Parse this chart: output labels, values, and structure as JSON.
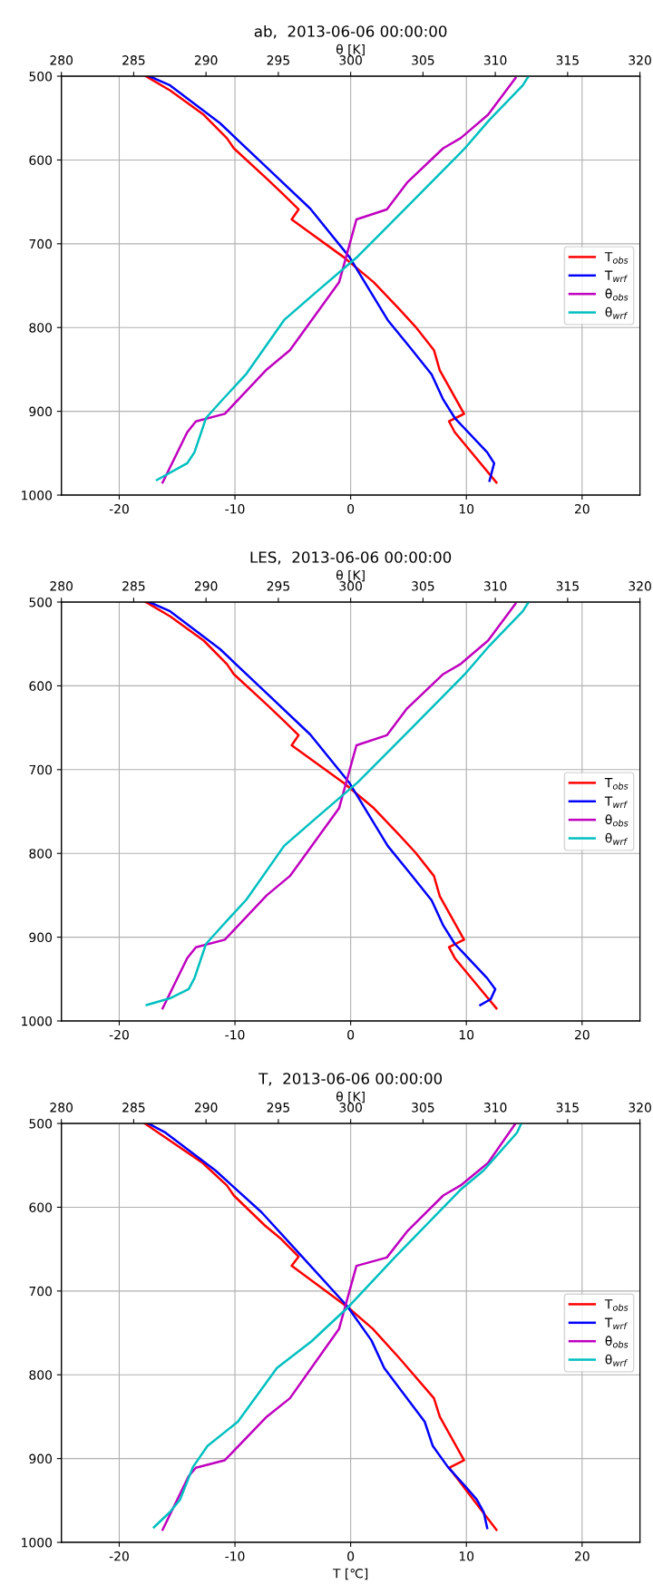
{
  "chart_data": [
    {
      "type": "line",
      "title": "ab,  2013-06-06 00:00:00",
      "x2label": "θ [K]",
      "xlim": [
        -25,
        25
      ],
      "xticks": [
        -20,
        -10,
        0,
        10,
        20
      ],
      "x2lim": [
        280,
        320
      ],
      "x2ticks": [
        280,
        285,
        290,
        295,
        300,
        305,
        310,
        315,
        320
      ],
      "ylim": [
        1000,
        500
      ],
      "yticks": [
        500,
        600,
        700,
        800,
        900,
        1000
      ],
      "grid": true,
      "legend": "center right",
      "line_style": "solid",
      "marker": "none",
      "series": [
        {
          "name": "T$_{obs}$",
          "color": "#ff0000",
          "x": [
            -17.7,
            -15.6,
            -12.7,
            -10.7,
            -10.1,
            -7.2,
            -5.9,
            -4.5,
            -5.1,
            -0.6,
            2.0,
            4.2,
            5.6,
            7.2,
            7.7,
            9.8,
            8.5,
            9.0,
            12.6
          ],
          "values": [
            500,
            517,
            546,
            574,
            586,
            623,
            640,
            659,
            671,
            716,
            746,
            778,
            799,
            827,
            851,
            903,
            912,
            925,
            985
          ]
        },
        {
          "name": "T$_{wrf}$",
          "color": "#0000ff",
          "x": [
            -17.4,
            -15.6,
            -11.3,
            -7.4,
            -3.5,
            -0.1,
            3.2,
            5.2,
            7.0,
            8.0,
            9.0,
            11.8,
            12.4,
            12.0
          ],
          "values": [
            500,
            511,
            556,
            607,
            658,
            716,
            791,
            825,
            856,
            886,
            908,
            949,
            962,
            983
          ]
        },
        {
          "name": "θ$_{obs}$",
          "color": "#bf00bf",
          "axis": "x2",
          "x": [
            311.4,
            309.5,
            307.6,
            306.4,
            303.9,
            302.5,
            300.4,
            299.2,
            295.8,
            294.2,
            291.3,
            289.3,
            288.7,
            287.0
          ],
          "values": [
            502,
            546,
            574,
            586,
            627,
            659,
            671,
            746,
            827,
            850,
            903,
            912,
            925,
            985
          ]
        },
        {
          "name": "θ$_{wrf}$",
          "color": "#00bfbf",
          "axis": "x2",
          "x": [
            312.3,
            311.9,
            309.6,
            307.9,
            303.9,
            300.5,
            297.6,
            295.4,
            292.8,
            291.2,
            290.0,
            289.2,
            288.7,
            286.6
          ],
          "values": [
            500,
            511,
            552,
            586,
            656,
            715,
            758,
            791,
            855,
            885,
            908,
            949,
            962,
            982
          ]
        }
      ]
    },
    {
      "type": "line",
      "title": "LES,  2013-06-06 00:00:00",
      "x2label": "θ [K]",
      "xlim": [
        -25,
        25
      ],
      "xticks": [
        -20,
        -10,
        0,
        10,
        20
      ],
      "x2lim": [
        280,
        320
      ],
      "x2ticks": [
        280,
        285,
        290,
        295,
        300,
        305,
        310,
        315,
        320
      ],
      "ylim": [
        1000,
        500
      ],
      "yticks": [
        500,
        600,
        700,
        800,
        900,
        1000
      ],
      "grid": true,
      "legend": "center right",
      "line_style": "solid",
      "marker": "none",
      "series": [
        {
          "name": "T$_{obs}$",
          "color": "#ff0000",
          "x": [
            -17.7,
            -15.6,
            -12.7,
            -10.7,
            -10.1,
            -7.2,
            -5.9,
            -4.5,
            -5.1,
            -0.6,
            2.0,
            4.2,
            5.6,
            7.2,
            7.7,
            9.8,
            8.5,
            9.0,
            12.6
          ],
          "values": [
            500,
            517,
            546,
            574,
            586,
            623,
            640,
            659,
            671,
            716,
            746,
            778,
            799,
            827,
            851,
            903,
            912,
            925,
            985
          ]
        },
        {
          "name": "T$_{wrf}$",
          "color": "#0000ff",
          "x": [
            -17.4,
            -15.6,
            -11.3,
            -7.4,
            -3.5,
            -0.1,
            3.2,
            5.2,
            7.0,
            8.0,
            9.0,
            11.8,
            12.5,
            12.1,
            11.2
          ],
          "values": [
            500,
            511,
            556,
            607,
            658,
            716,
            791,
            825,
            856,
            886,
            908,
            949,
            962,
            974,
            981
          ]
        },
        {
          "name": "θ$_{obs}$",
          "color": "#bf00bf",
          "axis": "x2",
          "x": [
            311.4,
            309.5,
            307.6,
            306.4,
            303.9,
            302.5,
            300.4,
            299.2,
            295.8,
            294.2,
            291.3,
            289.3,
            288.7,
            287.0
          ],
          "values": [
            502,
            546,
            574,
            586,
            627,
            659,
            671,
            746,
            827,
            850,
            903,
            912,
            925,
            985
          ]
        },
        {
          "name": "θ$_{wrf}$",
          "color": "#00bfbf",
          "axis": "x2",
          "x": [
            312.3,
            311.9,
            309.6,
            307.9,
            303.9,
            300.5,
            297.6,
            295.4,
            292.8,
            291.2,
            290.0,
            289.2,
            288.8,
            287.5,
            285.9
          ],
          "values": [
            500,
            511,
            552,
            586,
            656,
            715,
            758,
            791,
            855,
            885,
            908,
            949,
            962,
            973,
            981
          ]
        }
      ]
    },
    {
      "type": "line",
      "title": "T,  2013-06-06 00:00:00",
      "xlabel": "T [℃]",
      "x2label": "θ [K]",
      "xlim": [
        -25,
        25
      ],
      "xticks": [
        -20,
        -10,
        0,
        10,
        20
      ],
      "x2lim": [
        280,
        320
      ],
      "x2ticks": [
        280,
        285,
        290,
        295,
        300,
        305,
        310,
        315,
        320
      ],
      "ylim": [
        1000,
        500
      ],
      "yticks": [
        500,
        600,
        700,
        800,
        900,
        1000
      ],
      "grid": true,
      "legend": "center right",
      "line_style": "solid",
      "marker": "none",
      "series": [
        {
          "name": "T$_{obs}$",
          "color": "#ff0000",
          "x": [
            -17.8,
            -12.8,
            -10.7,
            -10.1,
            -7.4,
            -6.0,
            -4.5,
            -5.1,
            -0.2,
            1.9,
            4.2,
            7.2,
            7.7,
            9.8,
            8.5,
            12.6
          ],
          "values": [
            500,
            547,
            574,
            586,
            622,
            638,
            659,
            670,
            720,
            745,
            780,
            828,
            850,
            902,
            911,
            985
          ]
        },
        {
          "name": "T$_{wrf}$",
          "color": "#0000ff",
          "x": [
            -17.5,
            -16.0,
            -11.7,
            -7.7,
            -4.2,
            -0.3,
            1.8,
            2.9,
            6.4,
            7.1,
            8.4,
            9.9,
            10.9,
            11.5,
            11.8
          ],
          "values": [
            500,
            511,
            556,
            606,
            659,
            718,
            759,
            792,
            856,
            885,
            910,
            933,
            949,
            964,
            983
          ]
        },
        {
          "name": "θ$_{obs}$",
          "color": "#bf00bf",
          "axis": "x2",
          "x": [
            311.4,
            309.5,
            307.6,
            306.4,
            303.9,
            302.5,
            300.4,
            299.2,
            295.8,
            294.2,
            291.3,
            289.3,
            288.8,
            287.0
          ],
          "values": [
            500,
            547,
            574,
            586,
            629,
            660,
            670,
            745,
            828,
            850,
            902,
            911,
            921,
            985
          ]
        },
        {
          "name": "θ$_{wrf}$",
          "color": "#00bfbf",
          "axis": "x2",
          "x": [
            311.8,
            311.5,
            309.2,
            307.6,
            303.1,
            299.9,
            297.3,
            294.9,
            292.2,
            290.1,
            289.1,
            288.2,
            287.5,
            286.4
          ],
          "values": [
            500,
            511,
            556,
            579,
            659,
            718,
            760,
            792,
            856,
            885,
            910,
            949,
            964,
            982
          ]
        }
      ]
    }
  ]
}
